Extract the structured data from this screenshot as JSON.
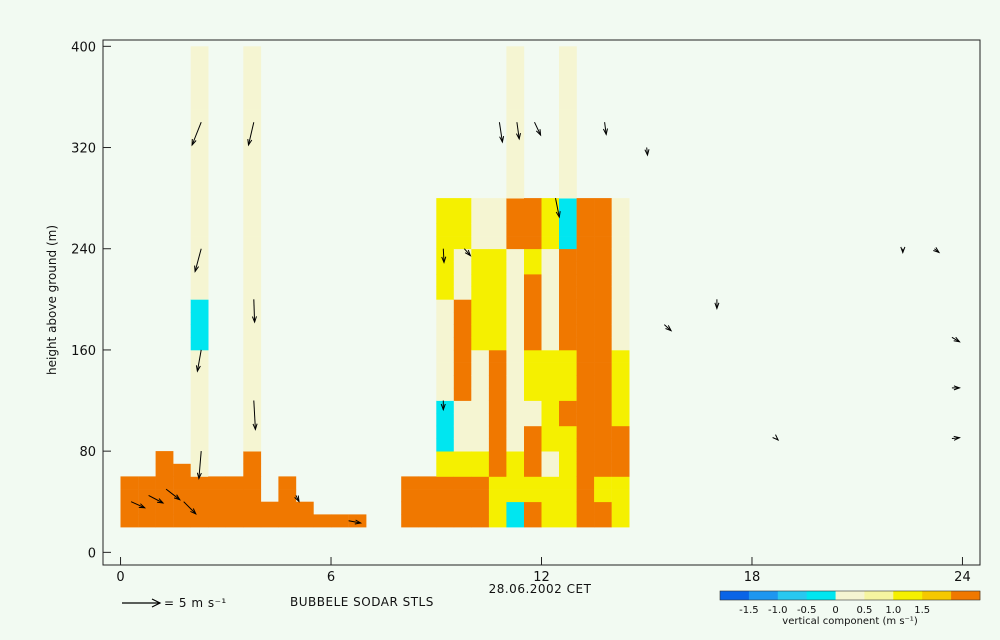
{
  "chart_data": {
    "type": "heatmap",
    "title": "BUBBELE SODAR STLS",
    "date_label": "28.06.2002 CET",
    "xlabel": "",
    "ylabel": "height above ground (m)",
    "xlim": [
      -0.5,
      24.5
    ],
    "ylim": [
      -10,
      405
    ],
    "x_ticks": [
      0,
      6,
      12,
      18,
      24
    ],
    "y_ticks": [
      0,
      80,
      160,
      240,
      320,
      400
    ],
    "wind_reference": {
      "label": "= 5 m s⁻¹",
      "speed": 5
    },
    "colorbar": {
      "label": "vertical component (m s⁻¹)",
      "ticks": [
        "-1.5",
        "-1.0",
        "-0.5",
        "0",
        "0.5",
        "1.0",
        "1.5"
      ],
      "colors": [
        "#0a64e6",
        "#1e96f0",
        "#28c8f0",
        "#00e6f0",
        "#f5f5d2",
        "#f5f5a0",
        "#f5f000",
        "#f5c800",
        "#f07800"
      ]
    },
    "cell_width_hours": 0.5,
    "cell_height_m": 10,
    "columns": [
      {
        "x": 0.25,
        "c": "s",
        "start": 20,
        "values": [
          1,
          1,
          1,
          1
        ]
      },
      {
        "x": 0.75,
        "c": "s",
        "start": 20,
        "values": [
          1,
          1,
          1,
          1
        ]
      },
      {
        "x": 1.25,
        "c": "s",
        "start": 20,
        "values": [
          1,
          1,
          1,
          1,
          1,
          1
        ]
      },
      {
        "x": 1.75,
        "c": "s",
        "start": 20,
        "values": [
          1,
          1,
          1,
          1,
          1
        ]
      },
      {
        "x": 2.25,
        "c": "s",
        "start": 20,
        "values": [
          1,
          1,
          1,
          1,
          3,
          3,
          3,
          3,
          3,
          3,
          3,
          3,
          3,
          3,
          0,
          0,
          0,
          0,
          3,
          3,
          3,
          3,
          3,
          3,
          3,
          3,
          3,
          3,
          3,
          3,
          3,
          3,
          3,
          3,
          3,
          3,
          3,
          3
        ]
      },
      {
        "x": 2.75,
        "c": "s",
        "start": 20,
        "values": [
          1,
          1,
          1,
          1
        ]
      },
      {
        "x": 3.25,
        "c": "s",
        "start": 20,
        "values": [
          1,
          1,
          1,
          1
        ]
      },
      {
        "x": 3.75,
        "c": "s",
        "start": 20,
        "values": [
          1,
          1,
          1,
          1,
          1,
          1,
          3,
          3,
          3,
          3,
          3,
          3,
          3,
          3,
          3,
          3,
          3,
          3,
          3,
          3,
          3,
          3,
          3,
          3,
          3,
          3,
          3,
          3,
          3,
          3,
          3,
          3,
          3,
          3,
          3,
          3,
          3,
          3
        ]
      },
      {
        "x": 4.25,
        "c": "s",
        "start": 20,
        "values": [
          1,
          1
        ]
      },
      {
        "x": 4.75,
        "c": "s",
        "start": 20,
        "values": [
          1,
          1,
          1,
          1
        ]
      },
      {
        "x": 5.25,
        "c": "s",
        "start": 20,
        "values": [
          1,
          1
        ]
      },
      {
        "x": 5.75,
        "c": "s",
        "start": 20,
        "values": [
          1
        ]
      },
      {
        "x": 6.25,
        "c": "s",
        "start": 20,
        "values": [
          1
        ]
      },
      {
        "x": 6.75,
        "c": "s",
        "start": 20,
        "values": [
          1
        ]
      },
      {
        "x": 8.25,
        "c": "s",
        "start": 20,
        "values": [
          1,
          1,
          1,
          1
        ]
      },
      {
        "x": 8.75,
        "c": "s",
        "start": 20,
        "values": [
          1,
          1,
          1,
          1
        ]
      },
      {
        "x": 9.25,
        "c": "s",
        "start": 20,
        "values": [
          1,
          1,
          1,
          1,
          2,
          2,
          0,
          0,
          0,
          0,
          3,
          3,
          3,
          3,
          3,
          3,
          3,
          3,
          2,
          2,
          2,
          2,
          2,
          2,
          2,
          2
        ]
      },
      {
        "x": 9.75,
        "c": "s",
        "start": 20,
        "values": [
          1,
          1,
          1,
          1,
          2,
          2,
          3,
          3,
          3,
          3,
          1,
          1,
          1,
          1,
          1,
          1,
          1,
          1,
          3,
          3,
          3,
          3,
          2,
          2,
          2,
          2
        ]
      },
      {
        "x": 10.25,
        "c": "s",
        "start": 20,
        "values": [
          1,
          1,
          1,
          1,
          2,
          2,
          3,
          3,
          3,
          3,
          3,
          3,
          3,
          3,
          2,
          2,
          2,
          2,
          2,
          2,
          2,
          2,
          3,
          3,
          3,
          3
        ]
      },
      {
        "x": 10.75,
        "c": "s",
        "start": 20,
        "values": [
          2,
          2,
          2,
          2,
          1,
          1,
          1,
          1,
          1,
          1,
          1,
          1,
          1,
          1,
          2,
          2,
          2,
          2,
          2,
          2,
          2,
          2,
          3,
          3,
          3,
          3
        ]
      },
      {
        "x": 11.25,
        "c": "s",
        "start": 20,
        "values": [
          0,
          0,
          2,
          2,
          2,
          2,
          3,
          3,
          3,
          3,
          3,
          3,
          3,
          3,
          3,
          3,
          3,
          3,
          3,
          3,
          3,
          3,
          1,
          1,
          1,
          1,
          3,
          3,
          3,
          3,
          3,
          3,
          3,
          3,
          3,
          3,
          3,
          3
        ]
      },
      {
        "x": 11.75,
        "c": "s",
        "start": 20,
        "values": [
          1,
          1,
          2,
          2,
          1,
          1,
          1,
          1,
          3,
          3,
          2,
          2,
          2,
          2,
          1,
          1,
          1,
          1,
          1,
          1,
          2,
          2,
          1,
          1,
          1,
          1
        ]
      },
      {
        "x": 12.25,
        "c": "s",
        "start": 20,
        "values": [
          2,
          2,
          2,
          2,
          3,
          3,
          2,
          2,
          2,
          2,
          2,
          2,
          2,
          2,
          3,
          3,
          3,
          3,
          3,
          3,
          3,
          3,
          2,
          2,
          2,
          2
        ]
      },
      {
        "x": 12.75,
        "c": "s",
        "start": 20,
        "values": [
          2,
          2,
          2,
          2,
          2,
          2,
          2,
          2,
          1,
          1,
          2,
          2,
          2,
          2,
          1,
          1,
          1,
          1,
          1,
          1,
          1,
          1,
          0,
          0,
          0,
          0,
          3,
          3,
          3,
          3,
          3,
          3,
          3,
          3,
          3,
          3,
          3,
          3
        ]
      },
      {
        "x": 13.25,
        "c": "s",
        "start": 20,
        "values": [
          1,
          1,
          1,
          1,
          1,
          1,
          1,
          1,
          1,
          1,
          1,
          1,
          1,
          1,
          1,
          1,
          1,
          1,
          1,
          1,
          1,
          1,
          1,
          1,
          1,
          1
        ]
      },
      {
        "x": 13.75,
        "c": "s",
        "start": 20,
        "values": [
          1,
          1,
          2,
          2,
          1,
          1,
          1,
          1,
          1,
          1,
          1,
          1,
          1,
          1,
          1,
          1,
          1,
          1,
          1,
          1,
          1,
          1,
          1,
          1,
          1,
          1
        ]
      },
      {
        "x": 14.25,
        "c": "s",
        "start": 20,
        "values": [
          2,
          2,
          2,
          2,
          1,
          1,
          1,
          1,
          2,
          2,
          2,
          2,
          2,
          2,
          3,
          3,
          3,
          3,
          3,
          3,
          3,
          3,
          3,
          3,
          3,
          3
        ]
      }
    ],
    "vectors": [
      {
        "x": 0.3,
        "y": 40,
        "u": 1.8,
        "v": -0.8
      },
      {
        "x": 0.8,
        "y": 45,
        "u": 1.9,
        "v": -1.0
      },
      {
        "x": 1.3,
        "y": 50,
        "u": 1.8,
        "v": -1.4
      },
      {
        "x": 1.8,
        "y": 40,
        "u": 1.6,
        "v": -1.6
      },
      {
        "x": 2.3,
        "y": 80,
        "u": -0.3,
        "v": -3.6
      },
      {
        "x": 2.3,
        "y": 160,
        "u": -0.5,
        "v": -2.8
      },
      {
        "x": 2.3,
        "y": 240,
        "u": -0.8,
        "v": -3.0
      },
      {
        "x": 2.3,
        "y": 340,
        "u": -1.2,
        "v": -3.0
      },
      {
        "x": 3.8,
        "y": 120,
        "u": 0.2,
        "v": -3.8
      },
      {
        "x": 3.8,
        "y": 200,
        "u": 0.1,
        "v": -3.0
      },
      {
        "x": 3.8,
        "y": 340,
        "u": -0.7,
        "v": -3.0
      },
      {
        "x": 5.0,
        "y": 45,
        "u": 0.4,
        "v": -0.8
      },
      {
        "x": 6.5,
        "y": 25,
        "u": 1.6,
        "v": -0.3
      },
      {
        "x": 9.2,
        "y": 120,
        "u": 0.0,
        "v": -1.2
      },
      {
        "x": 9.2,
        "y": 240,
        "u": 0.1,
        "v": -1.8
      },
      {
        "x": 9.8,
        "y": 240,
        "u": 0.8,
        "v": -0.9
      },
      {
        "x": 10.8,
        "y": 340,
        "u": 0.4,
        "v": -2.6
      },
      {
        "x": 11.3,
        "y": 340,
        "u": 0.3,
        "v": -2.2
      },
      {
        "x": 11.8,
        "y": 340,
        "u": 0.8,
        "v": -1.7
      },
      {
        "x": 12.4,
        "y": 280,
        "u": 0.5,
        "v": -2.5
      },
      {
        "x": 13.8,
        "y": 340,
        "u": 0.2,
        "v": -1.6
      },
      {
        "x": 15.0,
        "y": 320,
        "u": 0.1,
        "v": -1.0
      },
      {
        "x": 15.5,
        "y": 180,
        "u": 0.9,
        "v": -0.8
      },
      {
        "x": 17.0,
        "y": 200,
        "u": 0.0,
        "v": -1.2
      },
      {
        "x": 18.7,
        "y": 90,
        "u": 0.2,
        "v": -0.2
      },
      {
        "x": 22.3,
        "y": 240,
        "u": 0.0,
        "v": -0.5
      },
      {
        "x": 23.2,
        "y": 240,
        "u": 0.6,
        "v": -0.5
      },
      {
        "x": 23.7,
        "y": 170,
        "u": 1.0,
        "v": -0.6
      },
      {
        "x": 23.7,
        "y": 130,
        "u": 1.0,
        "v": 0.0
      },
      {
        "x": 23.7,
        "y": 90,
        "u": 1.0,
        "v": 0.1
      }
    ]
  }
}
